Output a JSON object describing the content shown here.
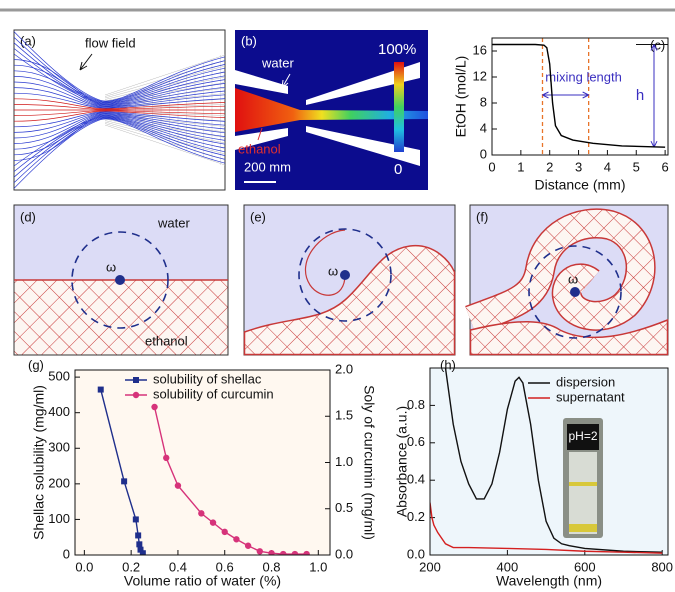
{
  "panels": {
    "a": {
      "label": "(a)",
      "annotation": "flow field"
    },
    "b": {
      "label": "(b)",
      "water": "water",
      "ethanol": "ethanol",
      "scale_bar": "200 mm",
      "colorbar_max": "100%",
      "colorbar_min": "0"
    },
    "d": {
      "label": "(d)",
      "water": "water",
      "omega": "ω",
      "ethanol": "ethanol"
    },
    "e": {
      "label": "(e)",
      "omega": "ω"
    },
    "f": {
      "label": "(f)",
      "omega": "ω"
    }
  },
  "chart_data": [
    {
      "type": "line",
      "panel_label": "(c)",
      "xlabel": "Distance (mm)",
      "ylabel": "EtOH (mol/L)",
      "x": [
        0,
        1.5,
        1.8,
        1.9,
        2.0,
        2.1,
        2.2,
        2.4,
        2.8,
        3.5,
        4.5,
        6
      ],
      "series": [
        {
          "color": "#000000",
          "values": [
            17,
            17,
            16.9,
            16.5,
            14,
            8,
            4.5,
            3,
            2.3,
            1.8,
            1.4,
            1.2
          ]
        }
      ],
      "xlim": [
        0,
        6.1
      ],
      "ylim": [
        0,
        18
      ],
      "xticks": [
        0,
        1,
        2,
        3,
        4,
        5,
        6
      ],
      "yticks": [
        0,
        4,
        8,
        12,
        16
      ],
      "mixing_bounds": [
        1.75,
        3.35
      ],
      "bounds_color": "#e8742a",
      "annotation_color": "#3a2fc0",
      "annotations": {
        "mixing_length": "mixing length",
        "height": "h"
      }
    },
    {
      "type": "line",
      "panel_label": "(g)",
      "xlabel": "Volume ratio of water (%)",
      "ylabel": "Shellac solubility (mg/ml)",
      "y2label": "Soly of curcumin (mg/ml)",
      "series": [
        {
          "name": "solubility of shellac",
          "color": "#1f2f8c",
          "marker": "square",
          "x": [
            0.07,
            0.17,
            0.22,
            0.23,
            0.235,
            0.24,
            0.25
          ],
          "values": [
            465,
            207,
            100,
            55,
            30,
            15,
            5
          ]
        },
        {
          "name": "solubility of curcumin",
          "color": "#d6337a",
          "marker": "circle",
          "axis": "y2",
          "x": [
            0.3,
            0.35,
            0.4,
            0.5,
            0.55,
            0.6,
            0.65,
            0.7,
            0.75,
            0.8,
            0.85,
            0.9,
            0.95
          ],
          "values": [
            1.6,
            1.05,
            0.75,
            0.45,
            0.35,
            0.25,
            0.17,
            0.1,
            0.04,
            0.02,
            0.01,
            0.01,
            0.01
          ]
        }
      ],
      "xlim": [
        -0.04,
        1.05
      ],
      "ylim": [
        0,
        520
      ],
      "y2lim": [
        0,
        2.0
      ],
      "xticks": [
        {
          "value": 0,
          "label": "0.0"
        },
        0.2,
        0.4,
        0.6,
        0.8,
        {
          "value": 1,
          "label": "1.0"
        }
      ],
      "yticks": [
        0,
        100,
        200,
        300,
        400,
        500
      ],
      "y2ticks": [
        {
          "value": 0,
          "label": "0.0"
        },
        0.5,
        {
          "value": 1,
          "label": "1.0"
        },
        1.5,
        {
          "value": 2,
          "label": "2.0"
        }
      ]
    },
    {
      "type": "line",
      "panel_label": "(h)",
      "xlabel": "Wavelength (nm)",
      "ylabel": "Absorbance (a.u.)",
      "inset_label": "pH=2",
      "series": [
        {
          "name": "dispersion",
          "color": "#111111",
          "x": [
            240,
            260,
            280,
            300,
            320,
            340,
            360,
            380,
            400,
            420,
            430,
            440,
            460,
            480,
            500,
            520,
            540,
            560,
            600,
            700,
            800
          ],
          "values": [
            1.0,
            0.7,
            0.5,
            0.38,
            0.3,
            0.3,
            0.38,
            0.55,
            0.78,
            0.93,
            0.95,
            0.92,
            0.7,
            0.4,
            0.18,
            0.09,
            0.06,
            0.05,
            0.035,
            0.02,
            0.015
          ]
        },
        {
          "name": "supernatant",
          "color": "#d42020",
          "x": [
            200,
            205,
            210,
            220,
            240,
            260,
            300,
            400,
            500,
            600,
            700,
            800
          ],
          "values": [
            0.28,
            0.2,
            0.16,
            0.12,
            0.06,
            0.04,
            0.04,
            0.035,
            0.03,
            0.02,
            0.015,
            0.01
          ]
        }
      ],
      "xlim": [
        200,
        815
      ],
      "ylim": [
        0,
        1.0
      ],
      "xticks": [
        200,
        400,
        600,
        800
      ],
      "yticks": [
        {
          "value": 0,
          "label": "0.0"
        },
        0.2,
        0.4,
        0.6,
        0.8
      ]
    }
  ]
}
